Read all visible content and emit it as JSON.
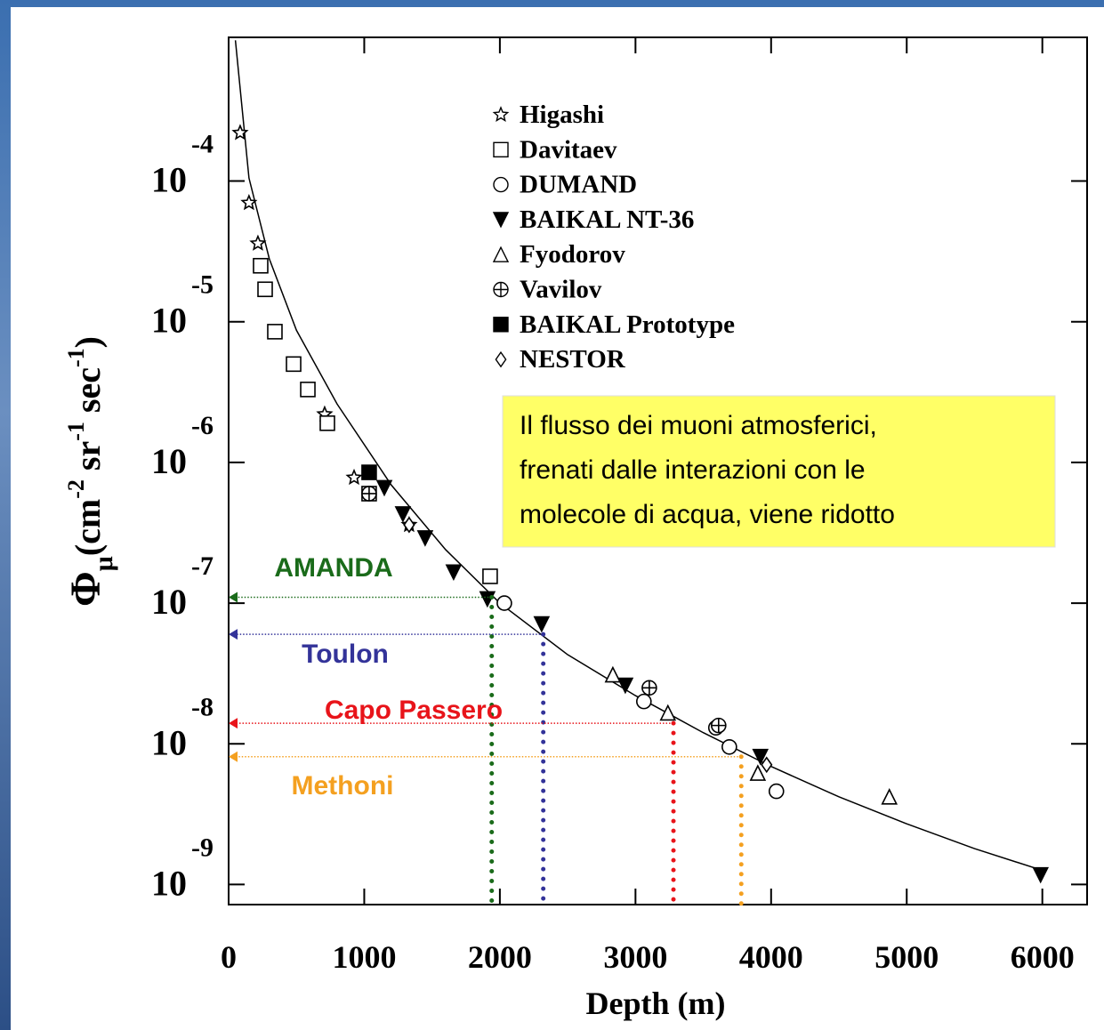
{
  "chart_data": {
    "type": "scatter",
    "y_label": [
      "Φ",
      "μ",
      "(cm",
      "-2",
      " sr",
      "-1",
      " sec",
      "-1",
      ")"
    ],
    "x_label": "Depth (m)",
    "xlim": [
      0,
      6330
    ],
    "xticks": [
      0,
      1000,
      2000,
      3000,
      4000,
      5000,
      6000
    ],
    "ylim": [
      7.2e-10,
      0.00105
    ],
    "log_y": true,
    "yticks": [
      {
        "value": 0.0001,
        "label": "10",
        "exponent": "-4"
      },
      {
        "value": 1e-05,
        "label": "10",
        "exponent": "-5"
      },
      {
        "value": 1e-06,
        "label": "10",
        "exponent": "-6"
      },
      {
        "value": 1e-07,
        "label": "10",
        "exponent": "-7"
      },
      {
        "value": 1e-08,
        "label": "10",
        "exponent": "-8"
      },
      {
        "value": 1e-09,
        "label": "10",
        "exponent": "-9"
      }
    ],
    "series": [
      {
        "name": "Higashi",
        "marker": "star",
        "x": [
          85,
          150,
          216,
          708,
          925,
          1331
        ],
        "values": [
          0.00022,
          7e-05,
          3.6e-05,
          2.2e-06,
          7.8e-07,
          3.6e-07
        ]
      },
      {
        "name": "Davitaev",
        "marker": "square",
        "x": [
          236,
          269,
          341,
          479,
          584,
          728,
          1036,
          1928
        ],
        "values": [
          2.5e-05,
          1.7e-05,
          8.5e-06,
          5e-06,
          3.3e-06,
          1.9e-06,
          6e-07,
          1.55e-07
        ]
      },
      {
        "name": "DUMAND",
        "marker": "circle",
        "x": [
          2033,
          3062,
          3593,
          3692,
          4039
        ],
        "values": [
          1e-07,
          2e-08,
          1.3e-08,
          9.5e-09,
          4.6e-09
        ]
      },
      {
        "name": "BAIKAL NT-36",
        "marker": "down-triangle",
        "x": [
          1148,
          1285,
          1449,
          1659,
          1908,
          2308,
          2925,
          3921,
          5987
        ],
        "values": [
          6.6e-07,
          4.3e-07,
          2.9e-07,
          1.66e-07,
          1.07e-07,
          7.1e-08,
          2.6e-08,
          8.1e-09,
          1.17e-09
        ]
      },
      {
        "name": "Fyodorov",
        "marker": "triangle",
        "x": [
          2833,
          3239,
          3902,
          4872
        ],
        "values": [
          3.1e-08,
          1.66e-08,
          6.2e-09,
          4.2e-09
        ]
      },
      {
        "name": "Vavilov",
        "marker": "crossed-circle",
        "x": [
          1036,
          3102,
          3613
        ],
        "values": [
          6e-07,
          2.5e-08,
          1.35e-08
        ]
      },
      {
        "name": "BAIKAL Prototype",
        "marker": "filled-square",
        "x": [
          1036
        ],
        "values": [
          8.5e-07
        ]
      },
      {
        "name": "NESTOR",
        "marker": "diamond",
        "x": [
          1331,
          3967
        ],
        "values": [
          3.6e-07,
          7.1e-09
        ]
      }
    ],
    "curve": {
      "x": [
        50,
        150,
        300,
        500,
        800,
        1200,
        1600,
        2000,
        2500,
        3000,
        3500,
        4000,
        4500,
        5000,
        5500,
        6000
      ],
      "values": [
        0.001,
        0.000105,
        2.8e-05,
        8.7e-06,
        2.6e-06,
        6.9e-07,
        2.4e-07,
        1e-07,
        4.3e-08,
        2.2e-08,
        1.2e-08,
        6.9e-09,
        4.2e-09,
        2.7e-09,
        1.8e-09,
        1.26e-09
      ]
    },
    "sites": [
      {
        "name": "AMANDA",
        "depth": 1940,
        "flux": 1.1e-07,
        "color": "#1a6b1a"
      },
      {
        "name": "Toulon",
        "depth": 2320,
        "flux": 6e-08,
        "color": "#333399"
      },
      {
        "name": "Capo Passero",
        "depth": 3280,
        "flux": 1.4e-08,
        "color": "#e8141a"
      },
      {
        "name": "Methoni",
        "depth": 3780,
        "flux": 8.1e-09,
        "color": "#f4a020"
      }
    ],
    "note": [
      "Il flusso dei muoni atmosferici,",
      "frenati dalle interazioni con le",
      "molecole di acqua, viene ridotto"
    ]
  }
}
